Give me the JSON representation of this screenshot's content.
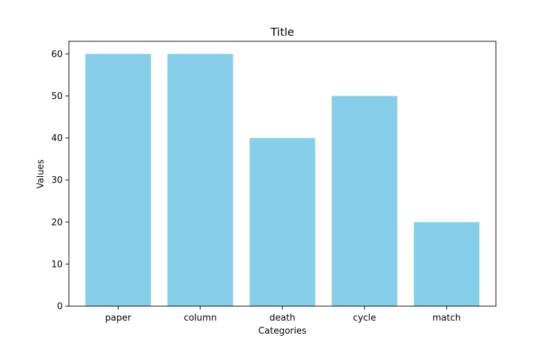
{
  "chart_data": {
    "type": "bar",
    "title": "Title",
    "xlabel": "Categories",
    "ylabel": "Values",
    "categories": [
      "paper",
      "column",
      "death",
      "cycle",
      "match"
    ],
    "values": [
      60,
      60,
      40,
      50,
      20
    ],
    "ylim": [
      0,
      63
    ],
    "yticks": [
      0,
      10,
      20,
      30,
      40,
      50,
      60
    ],
    "bar_color": "#87ceeb",
    "grid": false,
    "legend": false
  }
}
